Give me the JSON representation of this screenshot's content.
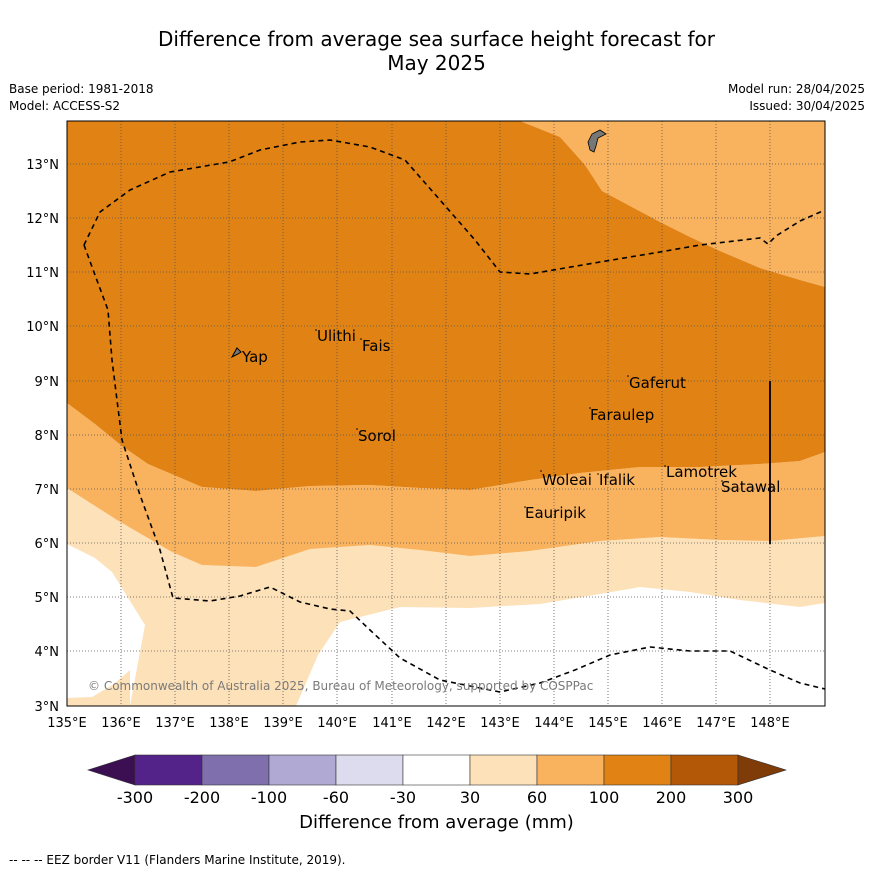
{
  "title_line1": "Difference from average sea surface height forecast for",
  "title_line2": "May 2025",
  "meta_left": [
    "Base period: 1981-2018",
    "Model: ACCESS-S2"
  ],
  "meta_right": [
    "Model run: 28/04/2025",
    "Issued: 30/04/2025"
  ],
  "copyright": "© Commonwealth of Australia 2025, Bureau of Meteorology, supported by COSPPac",
  "lon_ticks": [
    "135°E",
    "136°E",
    "137°E",
    "138°E",
    "139°E",
    "140°E",
    "141°E",
    "142°E",
    "143°E",
    "144°E",
    "145°E",
    "146°E",
    "147°E",
    "148°E"
  ],
  "lat_ticks": [
    "13°N",
    "12°N",
    "11°N",
    "10°N",
    "9°N",
    "8°N",
    "7°N",
    "6°N",
    "5°N",
    "4°N",
    "3°N"
  ],
  "places": [
    {
      "name": "Ulithi"
    },
    {
      "name": "Fais"
    },
    {
      "name": "Yap"
    },
    {
      "name": "Gaferut"
    },
    {
      "name": "Faraulep"
    },
    {
      "name": "Sorol"
    },
    {
      "name": "Lamotrek"
    },
    {
      "name": "Satawal"
    },
    {
      "name": "Woleai"
    },
    {
      "name": "Ifalik"
    },
    {
      "name": "Eauripik"
    }
  ],
  "colorbar": {
    "title": "Difference from average (mm)",
    "levels": [
      "-300",
      "-200",
      "-100",
      "-60",
      "-30",
      "30",
      "60",
      "100",
      "200",
      "300"
    ],
    "colors": [
      "#3b0f52",
      "#54238a",
      "#7f6fac",
      "#b0a9d4",
      "#dcdcee",
      "#ffffff",
      "#fde1b8",
      "#f9b35f",
      "#e08214",
      "#b35806",
      "#7f3b08"
    ]
  },
  "legend_line": "--  --  -- EEZ border V11 (Flanders Marine Institute, 2019)."
}
